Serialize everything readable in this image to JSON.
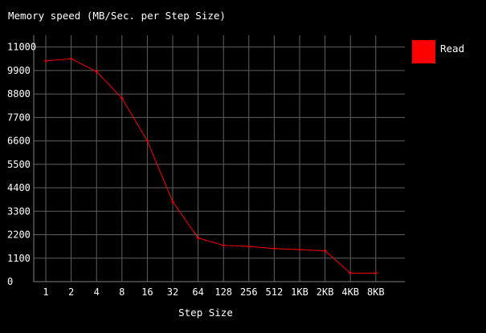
{
  "chart_data": {
    "type": "line",
    "title": "Memory speed (MB/Sec. per Step Size)",
    "xlabel": "Step Size",
    "ylabel": "",
    "categories": [
      "1",
      "2",
      "4",
      "8",
      "16",
      "32",
      "64",
      "128",
      "256",
      "512",
      "1KB",
      "2KB",
      "4KB",
      "8KB"
    ],
    "ylim": [
      0,
      11550
    ],
    "yticks": [
      0,
      1100,
      2200,
      3300,
      4400,
      5500,
      6600,
      7700,
      8800,
      9900,
      11000
    ],
    "grid": true,
    "legend": "right",
    "series": [
      {
        "name": "Read",
        "color": "#ff0000",
        "values": [
          10350,
          10450,
          9850,
          8600,
          6600,
          3750,
          2050,
          1700,
          1650,
          1550,
          1500,
          1450,
          400,
          400
        ]
      }
    ]
  }
}
